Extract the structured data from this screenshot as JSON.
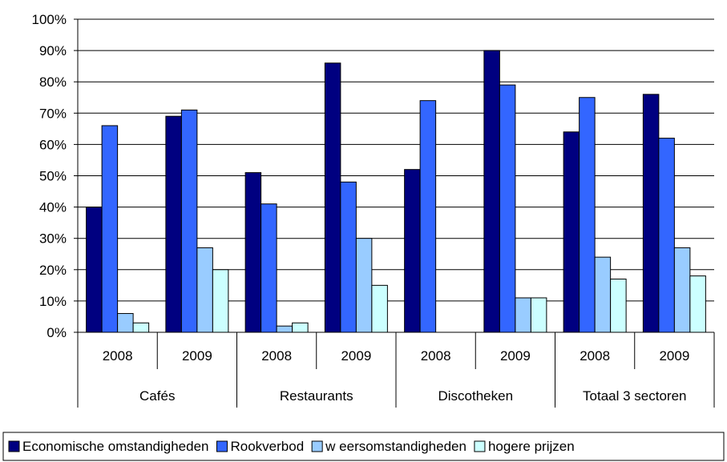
{
  "chart_data": {
    "type": "bar",
    "groups": [
      {
        "label": "Cafés",
        "years": [
          "2008",
          "2009"
        ]
      },
      {
        "label": "Restaurants",
        "years": [
          "2008",
          "2009"
        ]
      },
      {
        "label": "Discotheken",
        "years": [
          "2008",
          "2009"
        ]
      },
      {
        "label": "Totaal 3 sectoren",
        "years": [
          "2008",
          "2009"
        ]
      }
    ],
    "categories": [
      "Cafés 2008",
      "Cafés 2009",
      "Restaurants 2008",
      "Restaurants 2009",
      "Discotheken 2008",
      "Discotheken 2009",
      "Totaal 3 sectoren 2008",
      "Totaal 3 sectoren 2009"
    ],
    "series": [
      {
        "name": "Economische omstandigheden",
        "color": "#000080",
        "values": [
          40,
          69,
          51,
          86,
          52,
          90,
          64,
          76
        ]
      },
      {
        "name": "Rookverbod",
        "color": "#3366FF",
        "values": [
          66,
          71,
          41,
          48,
          74,
          79,
          75,
          62
        ]
      },
      {
        "name": "w eersomstandigheden",
        "color": "#99CCFF",
        "values": [
          6,
          27,
          2,
          30,
          0,
          11,
          24,
          27
        ]
      },
      {
        "name": "hogere prijzen",
        "color": "#CCFFFF",
        "values": [
          3,
          20,
          3,
          15,
          0,
          11,
          17,
          18
        ]
      }
    ],
    "yticks": [
      "0%",
      "10%",
      "20%",
      "30%",
      "40%",
      "50%",
      "60%",
      "70%",
      "80%",
      "90%",
      "100%"
    ],
    "ylim": [
      0,
      100
    ],
    "grid": true,
    "legend_position": "bottom"
  }
}
